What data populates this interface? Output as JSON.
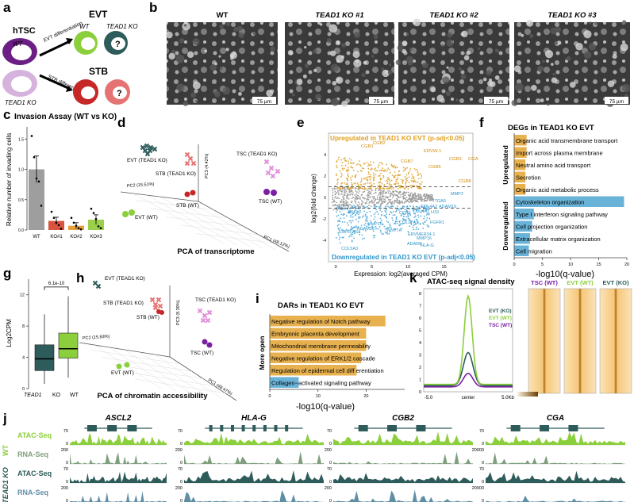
{
  "panels": {
    "a": {
      "letter": "a",
      "htsc_label": "hTSC",
      "wt_label": "WT",
      "ko_label": "TEAD1 KO",
      "evt_label": "EVT",
      "stb_label": "STB",
      "evt_diff": "EVT differentiation",
      "stb_diff": "STB differentiation",
      "qmark": "?",
      "colors": {
        "wt": "#6b1e83",
        "ko": "#d6b3dd",
        "evt": "#8ccf3c",
        "evt_ko": "#2e5c5a",
        "stb": "#c62828",
        "stb_ko": "#e57373"
      }
    },
    "b": {
      "letter": "b",
      "titles": [
        "WT",
        "TEAD1 KO #1",
        "TEAD1 KO #2",
        "TEAD1 KO #3"
      ],
      "scale": "75 µm"
    },
    "c": {
      "letter": "c",
      "title": "Invasion Assay (WT vs KO)",
      "ylabel": "Relative number of invading cells",
      "categories": [
        "WT",
        "KO#1",
        "KO#2",
        "KO#3"
      ],
      "values": [
        1.0,
        0.15,
        0.07,
        0.17
      ],
      "errors": [
        0.22,
        0.06,
        0.05,
        0.08
      ],
      "points": [
        [
          1.55,
          1.2,
          0.85,
          0.8,
          0.4
        ],
        [
          0.3,
          0.2,
          0.12,
          0.08,
          0.02
        ],
        [
          0.2,
          0.12,
          0.07,
          0.03,
          0.01
        ],
        [
          0.35,
          0.28,
          0.18,
          0.06,
          0.03
        ]
      ],
      "yticks": [
        "0.0",
        "0.5",
        "1.0",
        "1.5"
      ],
      "colors": [
        "#9e9e9e",
        "#d9533f",
        "#e6a13a",
        "#9ad04a"
      ]
    },
    "d": {
      "letter": "d",
      "labels": [
        "EVT (TEAD1 KO)",
        "STB (TEAD1 KO)",
        "STB (WT)",
        "EVT (WT)",
        "TSC (TEAD1 KO)",
        "TSC (WT)"
      ],
      "pc1": "PC1 (48.12%)",
      "pc2": "PC2 (15.51%)",
      "pc3": "PC3 (4.42%)",
      "caption": "PCA of transcriptome"
    },
    "e": {
      "letter": "e",
      "up_title": "Upregulated in TEAD1 KO EVT (p-adj<0.05)",
      "down_title": "Downregulated in TEAD1 KO EVT (p-adj<0.05)",
      "xlabel": "Expression: log2(averaged CPM)",
      "ylabel": "log2(fold change)",
      "xticks": [
        "0",
        "5",
        "10",
        "15"
      ],
      "yticks": [
        "4",
        "2",
        "0",
        "-2",
        "-4"
      ],
      "up_genes": [
        "CGB1",
        "CGB2",
        "CGB7",
        "ERVW-1",
        "CGB5",
        "CGB3",
        "CGA",
        "CGB8"
      ],
      "down_genes": [
        "MMP2",
        "ITGA5",
        "ADAM19",
        "COL4A2",
        "H19",
        "COL4A1",
        "CCR1",
        "FGFR1",
        "COL27A1",
        "MMP15",
        "ADAM28",
        "EGFR-AS1",
        "WNT7A",
        "ERVMER34-1",
        "MMP16",
        "ADAM8",
        "HLA-G",
        "COL5A3",
        "ASCL2"
      ]
    },
    "f": {
      "letter": "f",
      "title": "DEGs in TEAD1 KO EVT",
      "up_label": "Upregulated",
      "down_label": "Downregulated",
      "terms": [
        "Organic acid transmembrane transport",
        "Import across plasma membrane",
        "Neutral amino acid transport",
        "Secretion",
        "Organic acid metabolic process",
        "Cytoskeleton organization",
        "Type I interferon signaling pathway",
        "Cell projection organization",
        "Extracellular matrix organization",
        "Cell migration"
      ],
      "values": [
        2.2,
        2.2,
        2.0,
        2.0,
        2.0,
        19.5,
        3.5,
        3.2,
        2.8,
        2.6
      ],
      "xticks": [
        "0",
        "5",
        "10",
        "15",
        "20"
      ],
      "xlabel": "-log10(q-value)",
      "up_color": "#e8b14f",
      "down_color": "#6ab3d8"
    },
    "g": {
      "letter": "g",
      "ylabel": "Log2CPM",
      "pval": "6.1e-10",
      "groups": [
        "TEAD1 KO",
        "WT"
      ],
      "group_label_1": "TEAD1",
      "group_label_2": "KO",
      "group_label_3": "WT",
      "yticks": [
        "12",
        "8",
        "4",
        "0"
      ],
      "colors": [
        "#2e5c5a",
        "#8ccf3c"
      ]
    },
    "h": {
      "letter": "h",
      "labels": [
        "EVT (TEAD1 KO)",
        "STB (TEAD1 KO)",
        "STB (WT)",
        "EVT (WT)",
        "TSC (TEAD1 KO)",
        "TSC (WT)"
      ],
      "pc1": "PC1 (48.47%)",
      "pc2": "PC2 (15.83%)",
      "pc3": "PC3 (8.39%)",
      "caption": "PCA of chromatin accessibility"
    },
    "i": {
      "letter": "i",
      "title": "DARs in TEAD1 KO EVT",
      "side_label": "More open",
      "terms": [
        "Negative regulation of Notch pathway",
        "Embryonic placenta development",
        "Mitochondrial membrane permeability",
        "Negative regulation of ERK1/2 cascade",
        "Regulation of epidermal cell differentiation",
        "Collagen-activated signaling pathway"
      ],
      "terms_display": [
        "Negative regulation of Notch pathway",
        "Embryonic placenta development",
        "Mitochondrial membrane permeability",
        "Negative regulation of ERK1/2 cascade",
        "Regulation of epidermal cell diff erentiation",
        "Collagen−activated signaling pathway"
      ],
      "values": [
        24,
        20,
        20,
        19,
        18,
        6
      ],
      "colors": [
        "#e8b14f",
        "#e8b14f",
        "#e8b14f",
        "#e8b14f",
        "#e8b14f",
        "#6ab3d8"
      ],
      "xticks": [
        "0",
        "10",
        "20"
      ],
      "xlabel": "-log10(q-value)"
    },
    "k": {
      "letter": "k",
      "title": "ATAC-seq signal density",
      "legend": [
        "EVT (KO)",
        "EVT (WT)",
        "TSC (WT)"
      ],
      "xticks": [
        "-5.0",
        "center",
        "5.0Kb"
      ],
      "yticks": [
        "8",
        "7",
        "6",
        "5",
        "4",
        "3",
        "2",
        "1",
        "0"
      ],
      "heat_titles": [
        "TSC (WT)",
        "EVT (WT)",
        "EVT (KO)"
      ],
      "colors": [
        "#2e5c5a",
        "#8ccf3c",
        "#7b1fa2"
      ]
    },
    "j": {
      "letter": "j",
      "genes": [
        "ASCL2",
        "HLA-G",
        "CGB2",
        "CGA"
      ],
      "track_labels": [
        "ATAC-Seq",
        "RNA-Seq",
        "ATAC-Seq",
        "RNA-Seq"
      ],
      "group_labels": [
        "WT",
        "TEAD1 KO"
      ],
      "scales": [
        [
          "70",
          "200",
          "70",
          "200"
        ],
        [
          "70",
          "200",
          "70",
          "200"
        ],
        [
          "70",
          "200",
          "70",
          "200"
        ],
        [
          "70",
          "20000",
          "70",
          "20000"
        ]
      ],
      "track_colors": [
        "#8ccf3c",
        "#7f9f7f",
        "#2e5c5a",
        "#5f8fa5"
      ]
    }
  }
}
